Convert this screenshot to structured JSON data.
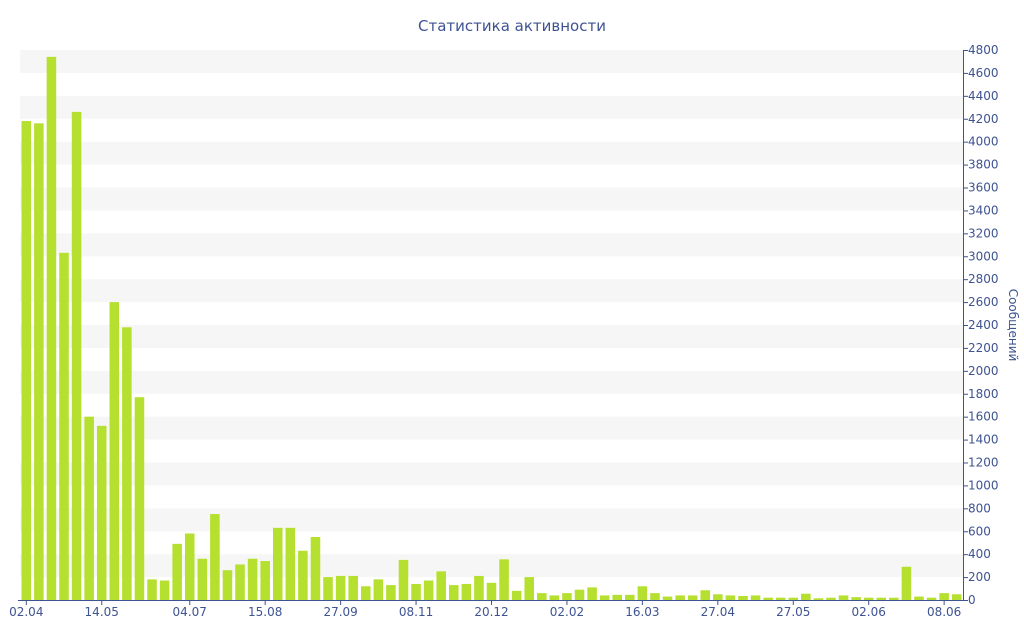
{
  "chart_data": {
    "type": "bar",
    "title": "Статистика активности",
    "xlabel": "",
    "ylabel": "Сообщений",
    "ylim": [
      0,
      4800
    ],
    "y_tick_step": 200,
    "y_axis_side": "right",
    "grid": "alternating horizontal bands",
    "legend": "none",
    "x_tick_labels": [
      {
        "label": "02.04",
        "index": 0
      },
      {
        "label": "14.05",
        "index": 6
      },
      {
        "label": "04.07",
        "index": 13
      },
      {
        "label": "15.08",
        "index": 19
      },
      {
        "label": "27.09",
        "index": 25
      },
      {
        "label": "08.11",
        "index": 31
      },
      {
        "label": "20.12",
        "index": 37
      },
      {
        "label": "02.02",
        "index": 43
      },
      {
        "label": "16.03",
        "index": 49
      },
      {
        "label": "27.04",
        "index": 55
      },
      {
        "label": "27.05",
        "index": 61
      },
      {
        "label": "02.06",
        "index": 67
      },
      {
        "label": "08.06",
        "index": 73
      }
    ],
    "values": [
      4180,
      4160,
      4740,
      3030,
      4260,
      1600,
      1520,
      2600,
      2380,
      1770,
      180,
      170,
      490,
      580,
      360,
      750,
      260,
      310,
      360,
      340,
      630,
      630,
      430,
      550,
      200,
      210,
      210,
      120,
      180,
      130,
      350,
      140,
      170,
      250,
      130,
      140,
      210,
      150,
      355,
      80,
      200,
      60,
      40,
      60,
      90,
      110,
      40,
      45,
      45,
      120,
      60,
      30,
      40,
      40,
      85,
      50,
      40,
      35,
      40,
      20,
      20,
      20,
      55,
      15,
      20,
      40,
      25,
      20,
      20,
      20,
      290,
      30,
      20,
      60,
      50
    ],
    "colors": {
      "bar": "#b5e030",
      "text": "#3e5391",
      "band": "#f6f6f6",
      "axis": "#3e5391"
    }
  }
}
